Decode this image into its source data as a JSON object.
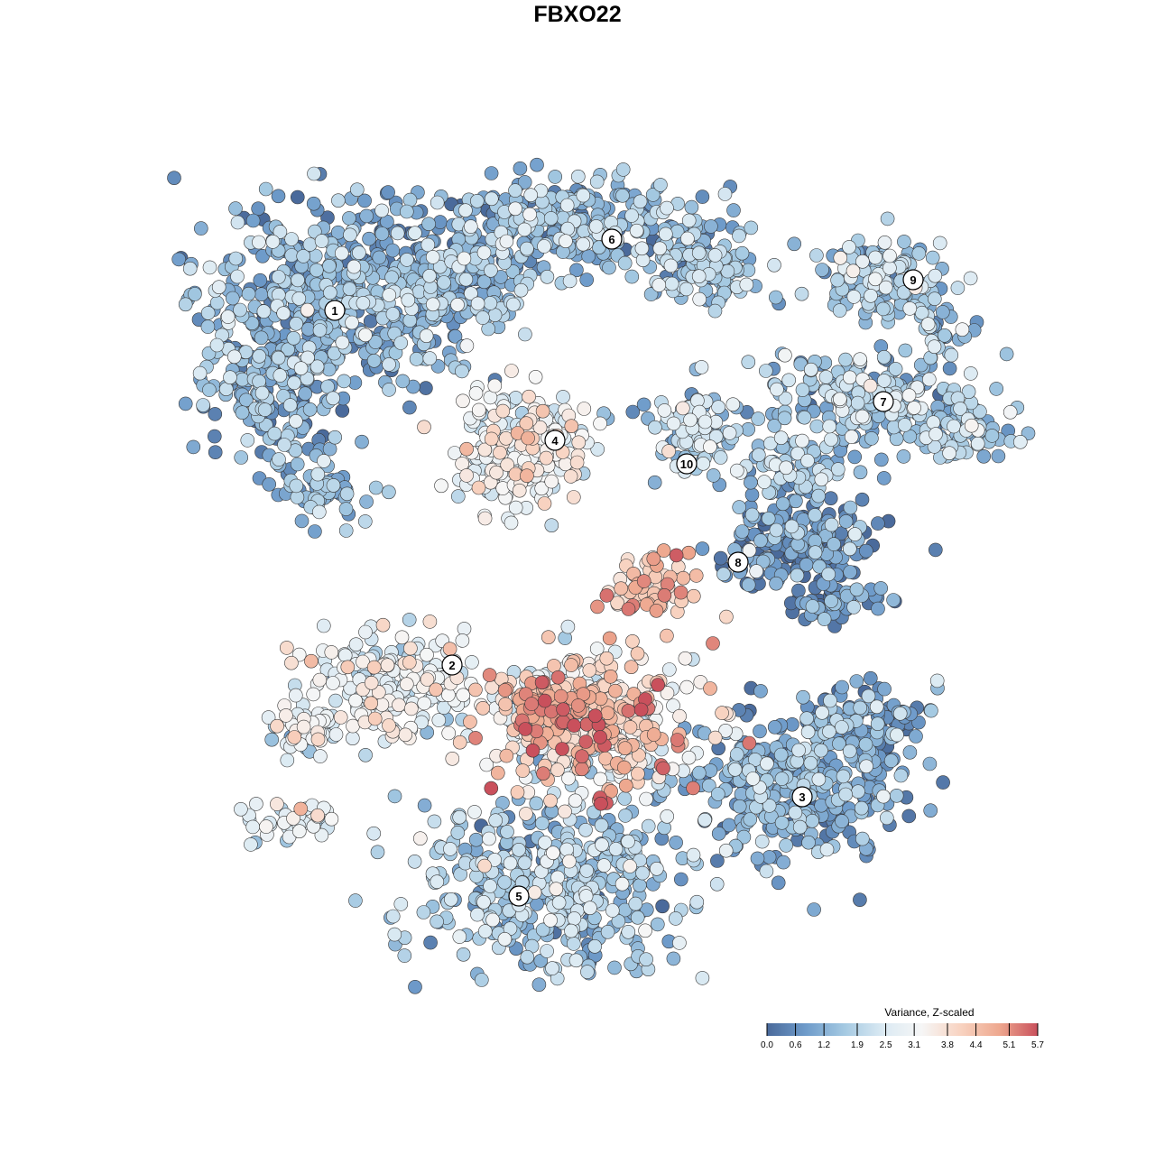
{
  "title": "FBXO22",
  "chart_data": {
    "type": "scatter",
    "title": "FBXO22",
    "xlabel": "",
    "ylabel": "",
    "grid": false,
    "axes_visible": false,
    "color_variable": "Variance, Z-scaled",
    "color_range": [
      0.0,
      5.7
    ],
    "color_ticks": [
      0.0,
      0.6,
      1.2,
      1.9,
      2.5,
      3.1,
      3.8,
      4.4,
      5.1,
      5.7
    ],
    "color_tick_labels": [
      "0.0",
      "0.6",
      "1.2",
      "1.9",
      "2.5",
      "3.1",
      "3.8",
      "4.4",
      "5.1",
      "5.7"
    ],
    "palette": [
      "#4a6a9b",
      "#6e9bca",
      "#a4c9e2",
      "#dbeaf3",
      "#f6f6f6",
      "#f8d3c1",
      "#eea88f",
      "#c9505c"
    ],
    "legend_position": "bottom-right",
    "clusters": [
      {
        "label": "1",
        "value_level": 1.2
      },
      {
        "label": "2",
        "value_level": 2.7
      },
      {
        "label": "3",
        "value_level": 1.0
      },
      {
        "label": "4",
        "value_level": 2.9
      },
      {
        "label": "5",
        "value_level": 1.6
      },
      {
        "label": "6",
        "value_level": 1.4
      },
      {
        "label": "7",
        "value_level": 1.6
      },
      {
        "label": "8",
        "value_level": 0.6
      },
      {
        "label": "9",
        "value_level": 1.7
      },
      {
        "label": "10",
        "value_level": 1.9
      }
    ]
  }
}
